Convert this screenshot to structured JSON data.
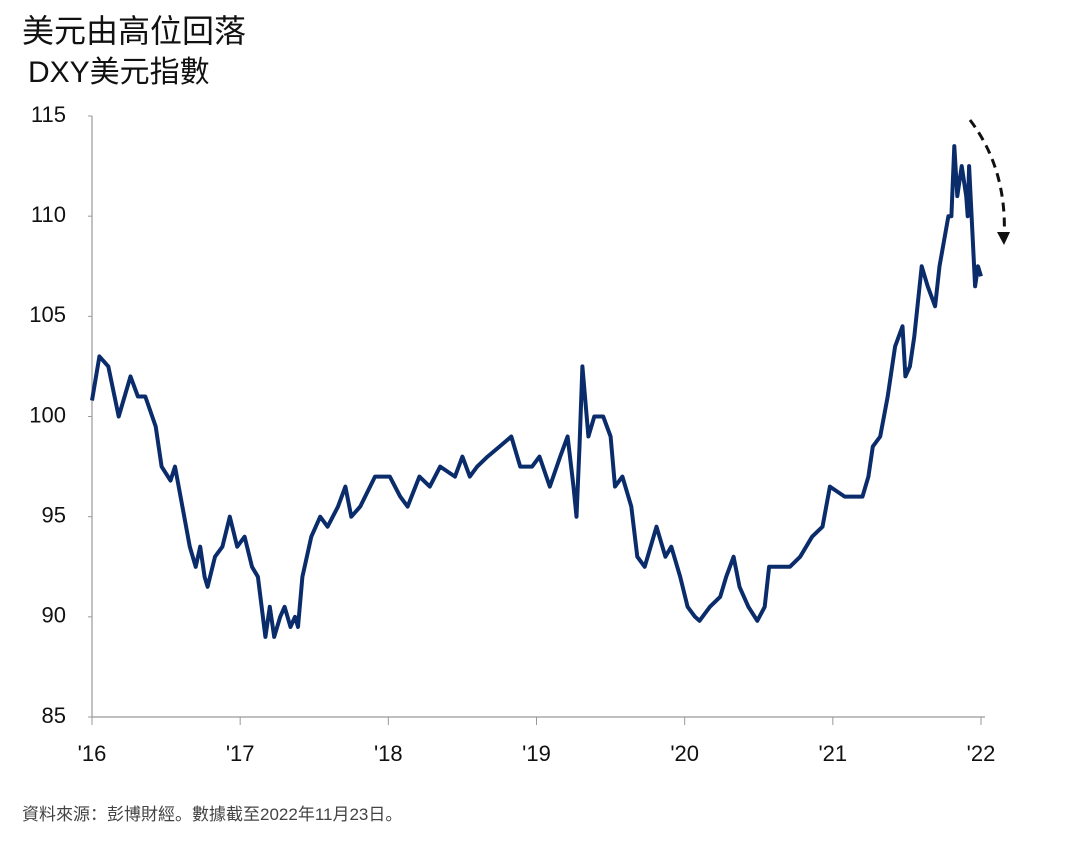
{
  "chart_data": {
    "type": "line",
    "title": "美元由高位回落",
    "subtitle": "DXY美元指數",
    "source": "資料來源：彭博財經。數據截至2022年11月23日。",
    "series": [
      {
        "name": "DXY",
        "color": "#0b2c6b",
        "x": [
          2016.0,
          2016.05,
          2016.11,
          2016.18,
          2016.22,
          2016.26,
          2016.31,
          2016.36,
          2016.43,
          2016.47,
          2016.53,
          2016.56,
          2016.61,
          2016.66,
          2016.7,
          2016.73,
          2016.76,
          2016.78,
          2016.83,
          2016.88,
          2016.93,
          2016.98,
          2017.03,
          2017.08,
          2017.12,
          2017.17,
          2017.2,
          2017.23,
          2017.27,
          2017.3,
          2017.34,
          2017.37,
          2017.39,
          2017.42,
          2017.48,
          2017.54,
          2017.59,
          2017.66,
          2017.71,
          2017.75,
          2017.81,
          2017.91,
          2018.01,
          2018.08,
          2018.13,
          2018.21,
          2018.28,
          2018.35,
          2018.45,
          2018.5,
          2018.55,
          2018.6,
          2018.67,
          2018.75,
          2018.83,
          2018.89,
          2018.97,
          2019.02,
          2019.09,
          2019.16,
          2019.21,
          2019.25,
          2019.27,
          2019.29,
          2019.31,
          2019.35,
          2019.39,
          2019.45,
          2019.5,
          2019.53,
          2019.58,
          2019.64,
          2019.68,
          2019.73,
          2019.81,
          2019.87,
          2019.91,
          2019.97,
          2020.02,
          2020.07,
          2020.1,
          2020.17,
          2020.24,
          2020.28,
          2020.33,
          2020.37,
          2020.43,
          2020.49,
          2020.54,
          2020.57,
          2020.64,
          2020.71,
          2020.78,
          2020.86,
          2020.93,
          2020.98,
          2021.08,
          2021.15,
          2021.2,
          2021.24,
          2021.27,
          2021.32,
          2021.37,
          2021.42,
          2021.47,
          2021.49,
          2021.52,
          2021.55,
          2021.6,
          2021.64,
          2021.69,
          2021.72,
          2021.78,
          2021.8,
          2021.82,
          2021.84,
          2021.87,
          2021.9,
          2021.91,
          2021.92,
          2021.96,
          2021.98,
          2022.0
        ],
        "values": [
          100.8,
          103,
          102.5,
          100,
          101,
          102,
          101,
          101,
          99.5,
          97.5,
          96.8,
          97.5,
          95.5,
          93.5,
          92.5,
          93.5,
          92,
          91.5,
          93,
          93.5,
          95,
          93.5,
          94,
          92.5,
          92,
          89,
          90.5,
          89,
          90,
          90.5,
          89.5,
          90,
          89.5,
          92,
          94,
          95,
          94.5,
          95.5,
          96.5,
          95,
          95.5,
          97,
          97,
          96,
          95.5,
          97,
          96.5,
          97.5,
          97,
          98,
          97,
          97.5,
          98,
          98.5,
          99,
          97.5,
          97.5,
          98,
          96.5,
          98,
          99,
          96.5,
          95,
          98.5,
          102.5,
          99,
          100,
          100,
          99,
          96.5,
          97,
          95.5,
          93,
          92.5,
          94.5,
          93,
          93.5,
          92,
          90.5,
          90,
          89.8,
          90.5,
          91,
          92,
          93,
          91.5,
          90.5,
          89.8,
          90.5,
          92.5,
          92.5,
          92.5,
          93,
          94,
          94.5,
          96.5,
          96,
          96,
          96,
          97,
          98.5,
          99,
          101,
          103.5,
          104.5,
          102,
          102.5,
          104,
          107.5,
          106.5,
          105.5,
          107.5,
          110,
          110,
          113.5,
          111,
          112.5,
          111,
          110,
          112.5,
          106.5,
          107.5,
          107
        ]
      }
    ],
    "xlim": [
      2016,
      2022
    ],
    "xticks": [
      {
        "value": 2016,
        "label": "'16"
      },
      {
        "value": 2017,
        "label": "'17"
      },
      {
        "value": 2018,
        "label": "'18"
      },
      {
        "value": 2019,
        "label": "'19"
      },
      {
        "value": 2020,
        "label": "'20"
      },
      {
        "value": 2021,
        "label": "'21"
      },
      {
        "value": 2022,
        "label": "'22"
      }
    ],
    "ylim": [
      85,
      115
    ],
    "yticks": [
      85,
      90,
      95,
      100,
      105,
      110,
      115
    ]
  }
}
